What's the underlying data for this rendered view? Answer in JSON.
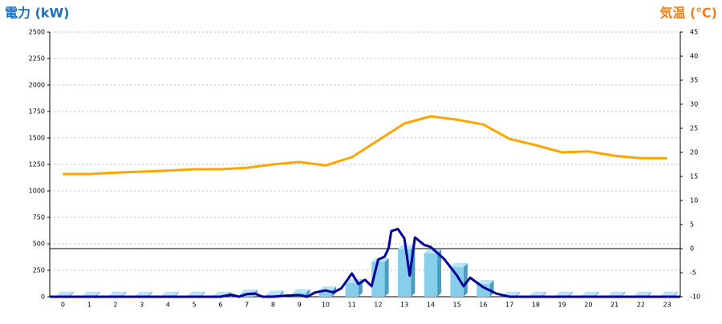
{
  "chart_data": {
    "type": "bar",
    "title": "電力 (kW)",
    "y2_title": "気温 (℃)",
    "categories": [
      "0",
      "1",
      "2",
      "3",
      "4",
      "5",
      "6",
      "7",
      "8",
      "9",
      "10",
      "11",
      "12",
      "13",
      "14",
      "15",
      "16",
      "17",
      "18",
      "19",
      "20",
      "21",
      "22",
      "23"
    ],
    "series": [
      {
        "type": "bar",
        "color": "#87ceeb",
        "values": [
          10,
          10,
          10,
          10,
          10,
          10,
          10,
          30,
          20,
          35,
          60,
          130,
          330,
          450,
          410,
          280,
          120,
          10,
          10,
          10,
          10,
          10,
          10,
          10
        ]
      },
      {
        "type": "line",
        "color": "#000099",
        "x": [
          -0.5,
          6,
          6.4,
          6.7,
          7,
          7.3,
          7.6,
          8,
          8.5,
          9,
          9.3,
          9.6,
          10,
          10.3,
          10.6,
          11,
          11.25,
          11.5,
          11.75,
          12,
          12.25,
          12.4,
          12.5,
          12.75,
          13,
          13.2,
          13.4,
          13.75,
          14,
          14.5,
          15,
          15.25,
          15.5,
          16,
          16.5,
          17,
          23.5
        ],
        "values": [
          0,
          0,
          20,
          0,
          25,
          30,
          0,
          0,
          10,
          15,
          0,
          40,
          60,
          40,
          80,
          220,
          120,
          160,
          100,
          350,
          380,
          460,
          620,
          640,
          550,
          200,
          560,
          490,
          470,
          360,
          200,
          100,
          180,
          90,
          30,
          0,
          0
        ]
      },
      {
        "type": "line",
        "axis": "y2",
        "color": "#ffa500",
        "values": [
          15.5,
          15.5,
          15.8,
          16,
          16.2,
          16.5,
          16.5,
          16.8,
          17.5,
          18,
          17.3,
          19,
          22.5,
          26,
          27.5,
          26.8,
          25.8,
          22.8,
          21.5,
          20,
          20.2,
          19.3,
          18.8,
          18.8
        ]
      }
    ],
    "ylim": [
      0,
      2500
    ],
    "yticks": [
      0,
      250,
      500,
      750,
      1000,
      1250,
      1500,
      1750,
      2000,
      2250,
      2500
    ],
    "y2lim": [
      -10,
      45
    ],
    "y2ticks": [
      -10,
      -5,
      0,
      5,
      10,
      15,
      20,
      25,
      30,
      35,
      40,
      45
    ],
    "grid": true
  }
}
